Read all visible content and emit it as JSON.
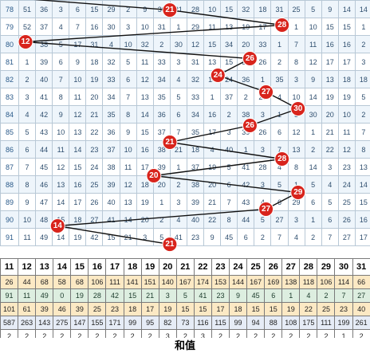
{
  "colors": {
    "ball": "#d8241c",
    "line": "#111111",
    "grid_border": "#b8c8d6"
  },
  "grid_rows": [
    {
      "id": "78",
      "cells": [
        "51",
        "36",
        "3",
        "6",
        "15",
        "29",
        "2",
        "9",
        "30",
        "21",
        "28",
        "10",
        "15",
        "32",
        "18",
        "31",
        "25",
        "5",
        "9",
        "14",
        "14"
      ]
    },
    {
      "id": "79",
      "cells": [
        "52",
        "37",
        "4",
        "7",
        "16",
        "30",
        "3",
        "10",
        "31",
        "1",
        "29",
        "11",
        "13",
        "19",
        "17",
        "28",
        "1",
        "10",
        "15",
        "15",
        "1"
      ]
    },
    {
      "id": "80",
      "cells": [
        "12",
        "38",
        "5",
        "17",
        "31",
        "4",
        "10",
        "32",
        "2",
        "30",
        "12",
        "15",
        "34",
        "20",
        "33",
        "1",
        "7",
        "11",
        "16",
        "16",
        "2"
      ]
    },
    {
      "id": "81",
      "cells": [
        "1",
        "39",
        "6",
        "9",
        "18",
        "32",
        "5",
        "11",
        "33",
        "3",
        "31",
        "13",
        "15",
        "35",
        "26",
        "2",
        "8",
        "12",
        "17",
        "17",
        "3"
      ]
    },
    {
      "id": "82",
      "cells": [
        "2",
        "40",
        "7",
        "10",
        "19",
        "33",
        "6",
        "12",
        "34",
        "4",
        "32",
        "14",
        "24",
        "36",
        "1",
        "35",
        "3",
        "9",
        "13",
        "18",
        "18"
      ]
    },
    {
      "id": "83",
      "cells": [
        "3",
        "41",
        "8",
        "11",
        "20",
        "34",
        "7",
        "13",
        "35",
        "5",
        "33",
        "1",
        "37",
        "2",
        "27",
        "4",
        "10",
        "14",
        "19",
        "19",
        "5"
      ]
    },
    {
      "id": "84",
      "cells": [
        "4",
        "42",
        "9",
        "12",
        "21",
        "35",
        "8",
        "14",
        "36",
        "6",
        "34",
        "16",
        "2",
        "38",
        "3",
        "1",
        "5",
        "30",
        "20",
        "10",
        "2"
      ]
    },
    {
      "id": "85",
      "cells": [
        "5",
        "43",
        "10",
        "13",
        "22",
        "36",
        "9",
        "15",
        "37",
        "7",
        "35",
        "17",
        "3",
        "39",
        "26",
        "6",
        "12",
        "1",
        "21",
        "11",
        "7"
      ]
    },
    {
      "id": "86",
      "cells": [
        "6",
        "44",
        "11",
        "14",
        "23",
        "37",
        "10",
        "16",
        "38",
        "21",
        "18",
        "4",
        "40",
        "1",
        "3",
        "7",
        "13",
        "2",
        "22",
        "12",
        "8"
      ]
    },
    {
      "id": "87",
      "cells": [
        "7",
        "45",
        "12",
        "15",
        "24",
        "38",
        "11",
        "17",
        "39",
        "1",
        "37",
        "19",
        "5",
        "41",
        "28",
        "4",
        "8",
        "14",
        "3",
        "23",
        "13"
      ]
    },
    {
      "id": "88",
      "cells": [
        "8",
        "46",
        "13",
        "16",
        "25",
        "39",
        "12",
        "18",
        "20",
        "2",
        "38",
        "20",
        "6",
        "42",
        "3",
        "5",
        "1",
        "5",
        "4",
        "24",
        "14"
      ]
    },
    {
      "id": "89",
      "cells": [
        "9",
        "47",
        "14",
        "17",
        "26",
        "40",
        "13",
        "19",
        "1",
        "3",
        "39",
        "21",
        "7",
        "43",
        "4",
        "6",
        "29",
        "6",
        "5",
        "25",
        "15"
      ]
    },
    {
      "id": "90",
      "cells": [
        "10",
        "48",
        "15",
        "18",
        "27",
        "41",
        "14",
        "20",
        "2",
        "4",
        "40",
        "22",
        "8",
        "44",
        "5",
        "27",
        "3",
        "1",
        "6",
        "26",
        "16"
      ]
    },
    {
      "id": "91",
      "cells": [
        "11",
        "49",
        "14",
        "19",
        "42",
        "15",
        "21",
        "3",
        "5",
        "41",
        "23",
        "9",
        "45",
        "6",
        "2",
        "7",
        "4",
        "2",
        "7",
        "27",
        "17"
      ]
    }
  ],
  "balls": [
    {
      "value": "21"
    },
    {
      "value": "28"
    },
    {
      "value": "12"
    },
    {
      "value": "26"
    },
    {
      "value": "24"
    },
    {
      "value": "27"
    },
    {
      "value": "30"
    },
    {
      "value": "26"
    },
    {
      "value": "21"
    },
    {
      "value": "28"
    },
    {
      "value": "20"
    },
    {
      "value": "29"
    },
    {
      "value": "27"
    },
    {
      "value": "14"
    },
    {
      "value": "21"
    }
  ],
  "stats": {
    "header": [
      "11",
      "12",
      "13",
      "14",
      "15",
      "16",
      "17",
      "18",
      "19",
      "20",
      "21",
      "22",
      "23",
      "24",
      "25",
      "26",
      "27",
      "28",
      "29",
      "30",
      "31",
      "32"
    ],
    "rows": [
      [
        "26",
        "44",
        "68",
        "58",
        "68",
        "106",
        "111",
        "141",
        "151",
        "140",
        "167",
        "174",
        "153",
        "144",
        "167",
        "169",
        "138",
        "118",
        "106",
        "114",
        "66",
        "59"
      ],
      [
        "91",
        "11",
        "49",
        "0",
        "19",
        "28",
        "42",
        "15",
        "21",
        "3",
        "5",
        "41",
        "23",
        "9",
        "45",
        "6",
        "1",
        "4",
        "2",
        "7",
        "27",
        "17"
      ],
      [
        "101",
        "61",
        "39",
        "46",
        "39",
        "25",
        "23",
        "18",
        "17",
        "19",
        "15",
        "15",
        "17",
        "18",
        "15",
        "15",
        "19",
        "22",
        "25",
        "23",
        "40",
        "45"
      ],
      [
        "587",
        "263",
        "143",
        "275",
        "147",
        "155",
        "171",
        "99",
        "95",
        "82",
        "73",
        "116",
        "115",
        "99",
        "94",
        "88",
        "108",
        "175",
        "111",
        "199",
        "261",
        "2"
      ],
      [
        "2",
        "2",
        "2",
        "2",
        "2",
        "2",
        "2",
        "2",
        "2",
        "3",
        "2",
        "3",
        "2",
        "2",
        "2",
        "2",
        "2",
        "2",
        "2",
        "1",
        "2",
        "2"
      ]
    ],
    "colors": [
      [],
      [
        "",
        "",
        "green",
        "",
        "",
        "red",
        "",
        "",
        "",
        "red",
        "green",
        "",
        "",
        "",
        "",
        "",
        "",
        "",
        "",
        "",
        "",
        ""
      ],
      [
        "",
        "",
        "red",
        "",
        "",
        "orange",
        "orange",
        "",
        "red",
        "",
        "",
        "orange",
        "red",
        "orange",
        "red",
        "",
        "",
        "",
        "",
        "",
        "",
        ""
      ],
      [],
      []
    ]
  },
  "footer": {
    "label": "和值"
  }
}
